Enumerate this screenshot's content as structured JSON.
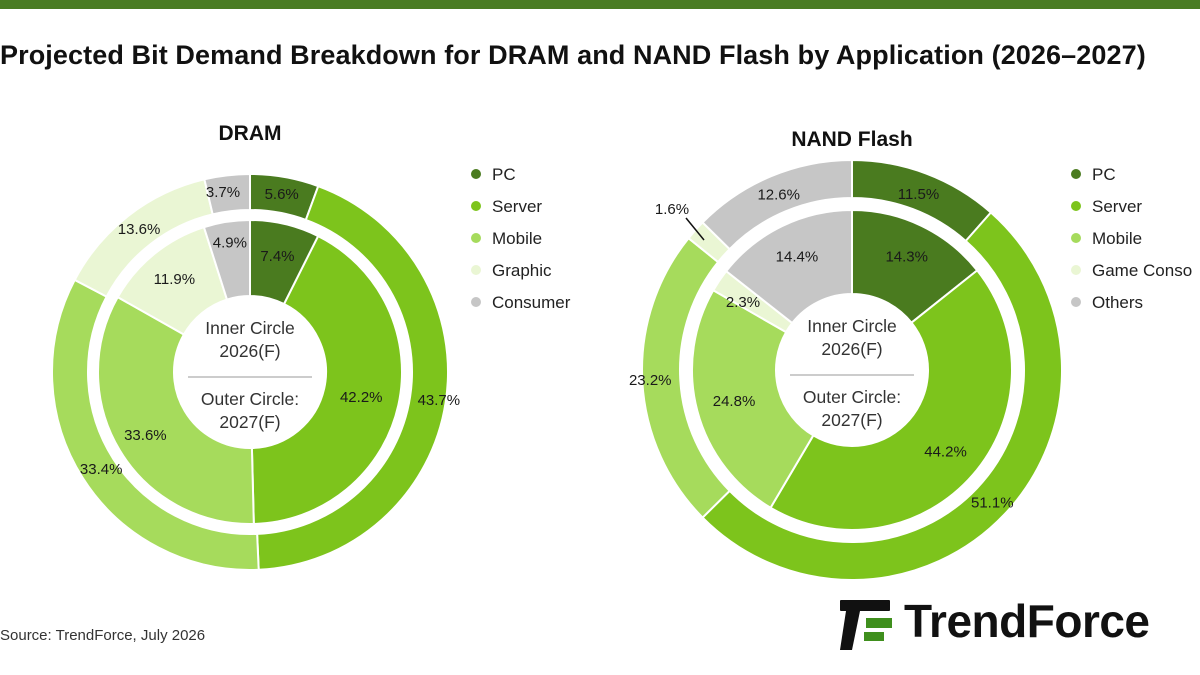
{
  "title": "Projected Bit Demand Breakdown for DRAM and NAND Flash by Application (2026–2027)",
  "source": "Source: TrendForce, July 2026",
  "logo_text": "TrendForce",
  "colors": {
    "top_bar": "#4a7c23",
    "PC": "#4a7b1f",
    "Server": "#7dc41c",
    "Mobile": "#a6db5c",
    "Graphic": "#eaf6d4",
    "Consumer": "#c6c6c6",
    "logo_green": "#3f8f1d"
  },
  "chart_data": [
    {
      "type": "pie",
      "variant": "nested-donut",
      "title": "DRAM",
      "center_text": [
        "Inner Circle",
        "2026(F)",
        "Outer Circle:",
        "2027(F)"
      ],
      "categories": [
        "PC",
        "Server",
        "Mobile",
        "Graphic",
        "Consumer"
      ],
      "legend": [
        "PC",
        "Server",
        "Mobile",
        "Graphic",
        "Consumer"
      ],
      "legend_position": "right",
      "series": [
        {
          "ring": "inner",
          "values": [
            7.4,
            42.2,
            33.6,
            11.9,
            4.9
          ],
          "labels": [
            "7.4%",
            "42.2%",
            "33.6%",
            "11.9%",
            "4.9%"
          ]
        },
        {
          "ring": "outer",
          "values": [
            5.6,
            43.7,
            33.4,
            13.6,
            3.7
          ],
          "labels": [
            "5.6%",
            "43.7%",
            "33.4%",
            "13.6%",
            "3.7%"
          ]
        }
      ]
    },
    {
      "type": "pie",
      "variant": "nested-donut",
      "title": "NAND Flash",
      "center_text": [
        "Inner Circle",
        "2026(F)",
        "Outer Circle:",
        "2027(F)"
      ],
      "categories": [
        "PC",
        "Server",
        "Mobile",
        "Game Console",
        "Others"
      ],
      "legend": [
        "PC",
        "Server",
        "Mobile",
        "Game Conso",
        "Others"
      ],
      "legend_position": "right",
      "series": [
        {
          "ring": "inner",
          "values": [
            14.3,
            44.2,
            24.8,
            2.3,
            14.4
          ],
          "labels": [
            "14.3%",
            "44.2%",
            "24.8%",
            "2.3%",
            "14.4%"
          ]
        },
        {
          "ring": "outer",
          "values": [
            11.5,
            51.1,
            23.2,
            1.6,
            12.6
          ],
          "labels": [
            "11.5%",
            "51.1%",
            "23.2%",
            "1.6%",
            "12.6%"
          ]
        }
      ]
    }
  ]
}
